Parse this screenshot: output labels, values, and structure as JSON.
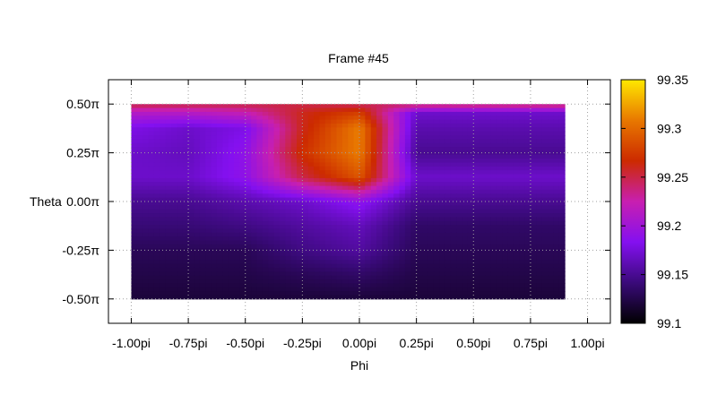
{
  "chart_data": {
    "type": "heatmap",
    "title": "Frame #45",
    "xlabel": "Phi",
    "ylabel": "Theta",
    "xlim": [
      -1.1,
      1.1
    ],
    "ylim": [
      -0.625,
      0.625
    ],
    "data_extent": {
      "x": [
        -1.0,
        0.9
      ],
      "y": [
        -0.5,
        0.5
      ]
    },
    "x_ticks": [
      {
        "value": -1.0,
        "label": "-1.00pi"
      },
      {
        "value": -0.75,
        "label": "-0.75pi"
      },
      {
        "value": -0.5,
        "label": "-0.50pi"
      },
      {
        "value": -0.25,
        "label": "-0.25pi"
      },
      {
        "value": 0.0,
        "label": "0.00pi"
      },
      {
        "value": 0.25,
        "label": "0.25pi"
      },
      {
        "value": 0.5,
        "label": "0.50pi"
      },
      {
        "value": 0.75,
        "label": "0.75pi"
      },
      {
        "value": 1.0,
        "label": "1.00pi"
      }
    ],
    "y_ticks": [
      {
        "value": 0.5,
        "label": "0.50π"
      },
      {
        "value": 0.25,
        "label": "0.25π"
      },
      {
        "value": 0.0,
        "label": "0.00π"
      },
      {
        "value": -0.25,
        "label": "-0.25π"
      },
      {
        "value": -0.5,
        "label": "-0.50π"
      }
    ],
    "colorbar": {
      "range": [
        99.1,
        99.35
      ],
      "ticks": [
        {
          "value": 99.35,
          "label": "99.35"
        },
        {
          "value": 99.3,
          "label": "99.3"
        },
        {
          "value": 99.25,
          "label": "99.25"
        },
        {
          "value": 99.2,
          "label": "99.2"
        },
        {
          "value": 99.15,
          "label": "99.15"
        },
        {
          "value": 99.1,
          "label": "99.1"
        }
      ],
      "palette": [
        "#000000",
        "#3a0a7a",
        "#8410f0",
        "#c81fb0",
        "#cc2a00",
        "#e87800",
        "#ffe800"
      ]
    },
    "grid": true,
    "z_values": {
      "x": [
        -1.0,
        -0.75,
        -0.5,
        -0.25,
        0.0,
        0.25,
        0.5,
        0.75
      ],
      "y": [
        0.5,
        0.45,
        0.375,
        0.25,
        0.125,
        0.0,
        -0.125,
        -0.25,
        -0.375,
        -0.5
      ],
      "values": [
        [
          99.25,
          99.25,
          99.25,
          99.25,
          99.245,
          99.245,
          99.245,
          99.245
        ],
        [
          99.21,
          99.21,
          99.22,
          99.26,
          99.28,
          99.17,
          99.17,
          99.17
        ],
        [
          99.18,
          99.17,
          99.18,
          99.26,
          99.31,
          99.16,
          99.16,
          99.16
        ],
        [
          99.17,
          99.165,
          99.19,
          99.27,
          99.31,
          99.15,
          99.15,
          99.15
        ],
        [
          99.17,
          99.17,
          99.19,
          99.25,
          99.29,
          99.17,
          99.17,
          99.17
        ],
        [
          99.15,
          99.15,
          99.16,
          99.17,
          99.19,
          99.15,
          99.15,
          99.15
        ],
        [
          99.14,
          99.14,
          99.145,
          99.155,
          99.165,
          99.135,
          99.135,
          99.135
        ],
        [
          99.13,
          99.13,
          99.13,
          99.145,
          99.155,
          99.13,
          99.13,
          99.13
        ],
        [
          99.125,
          99.125,
          99.125,
          99.13,
          99.135,
          99.125,
          99.125,
          99.125
        ],
        [
          99.12,
          99.12,
          99.12,
          99.12,
          99.12,
          99.12,
          99.12,
          99.12
        ]
      ]
    }
  }
}
